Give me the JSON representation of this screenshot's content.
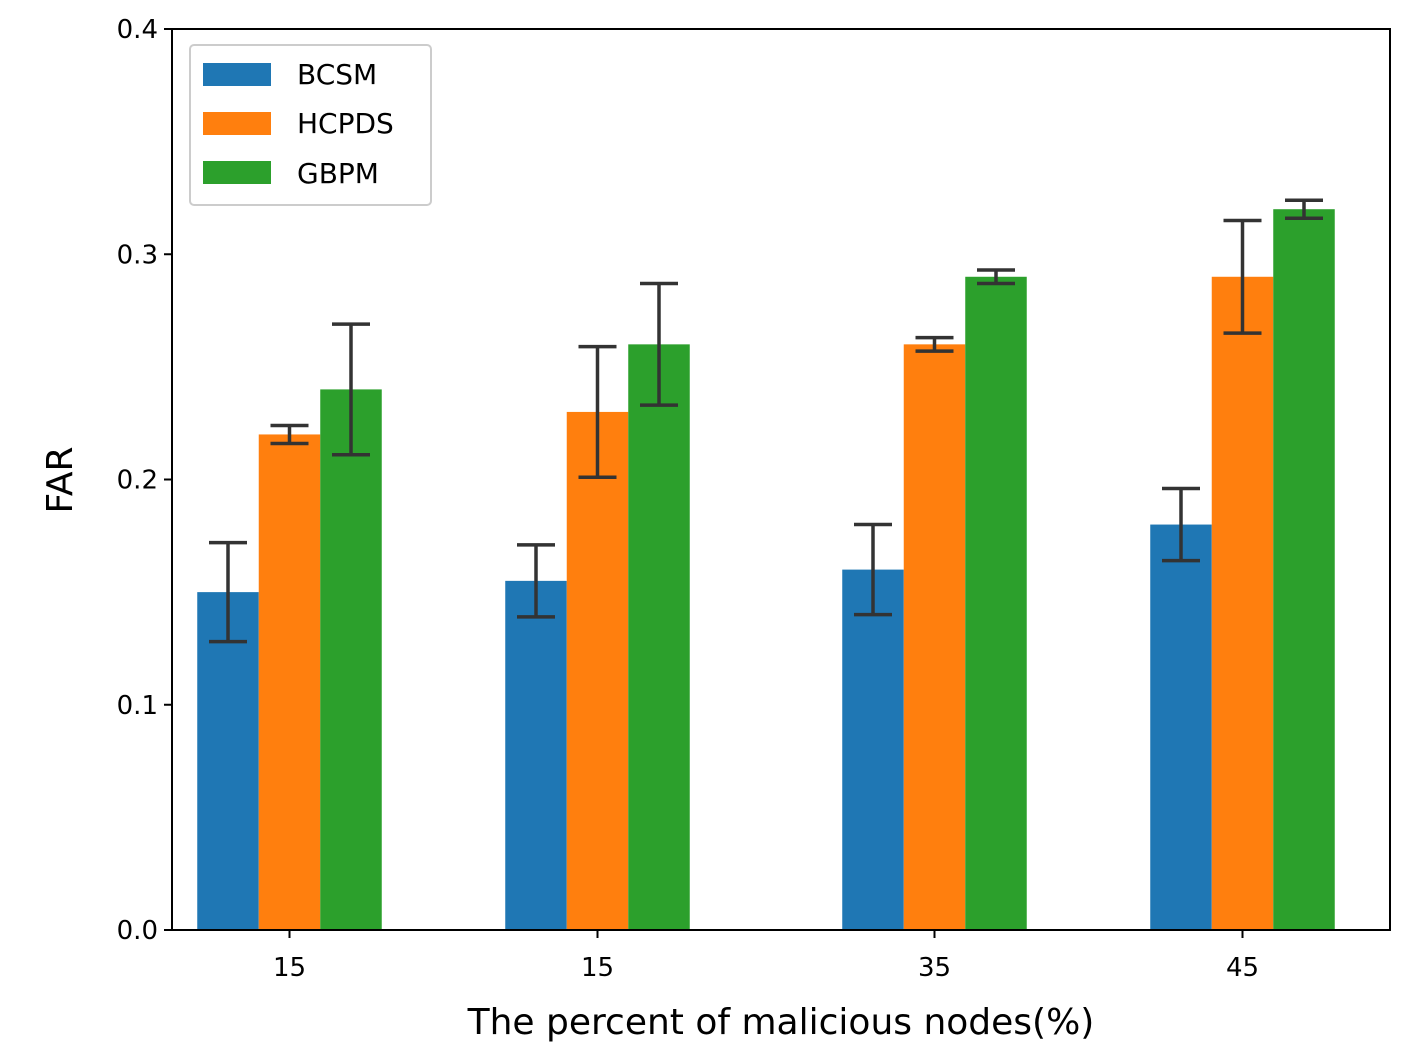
{
  "chart_data": {
    "type": "bar",
    "title": "",
    "xlabel": "The percent of malicious nodes(%)",
    "ylabel": "FAR",
    "categories": [
      "15",
      "15",
      "35",
      "45"
    ],
    "ylim": [
      0.0,
      0.4
    ],
    "yticks": [
      "0.0",
      "0.1",
      "0.2",
      "0.3",
      "0.4"
    ],
    "grid": false,
    "legend_position": "top-left",
    "series": [
      {
        "name": "BCSM",
        "color": "#1f77b4",
        "values": [
          0.15,
          0.155,
          0.16,
          0.18
        ],
        "error_low": [
          0.128,
          0.139,
          0.14,
          0.164
        ],
        "error_high": [
          0.172,
          0.171,
          0.18,
          0.196
        ]
      },
      {
        "name": "HCPDS",
        "color": "#ff7f0e",
        "values": [
          0.22,
          0.23,
          0.26,
          0.29
        ],
        "error_low": [
          0.216,
          0.201,
          0.257,
          0.265
        ],
        "error_high": [
          0.224,
          0.259,
          0.263,
          0.315
        ]
      },
      {
        "name": "GBPM",
        "color": "#2ca02c",
        "values": [
          0.24,
          0.26,
          0.29,
          0.32
        ],
        "error_low": [
          0.211,
          0.233,
          0.287,
          0.316
        ],
        "error_high": [
          0.269,
          0.287,
          0.293,
          0.324
        ]
      }
    ]
  }
}
